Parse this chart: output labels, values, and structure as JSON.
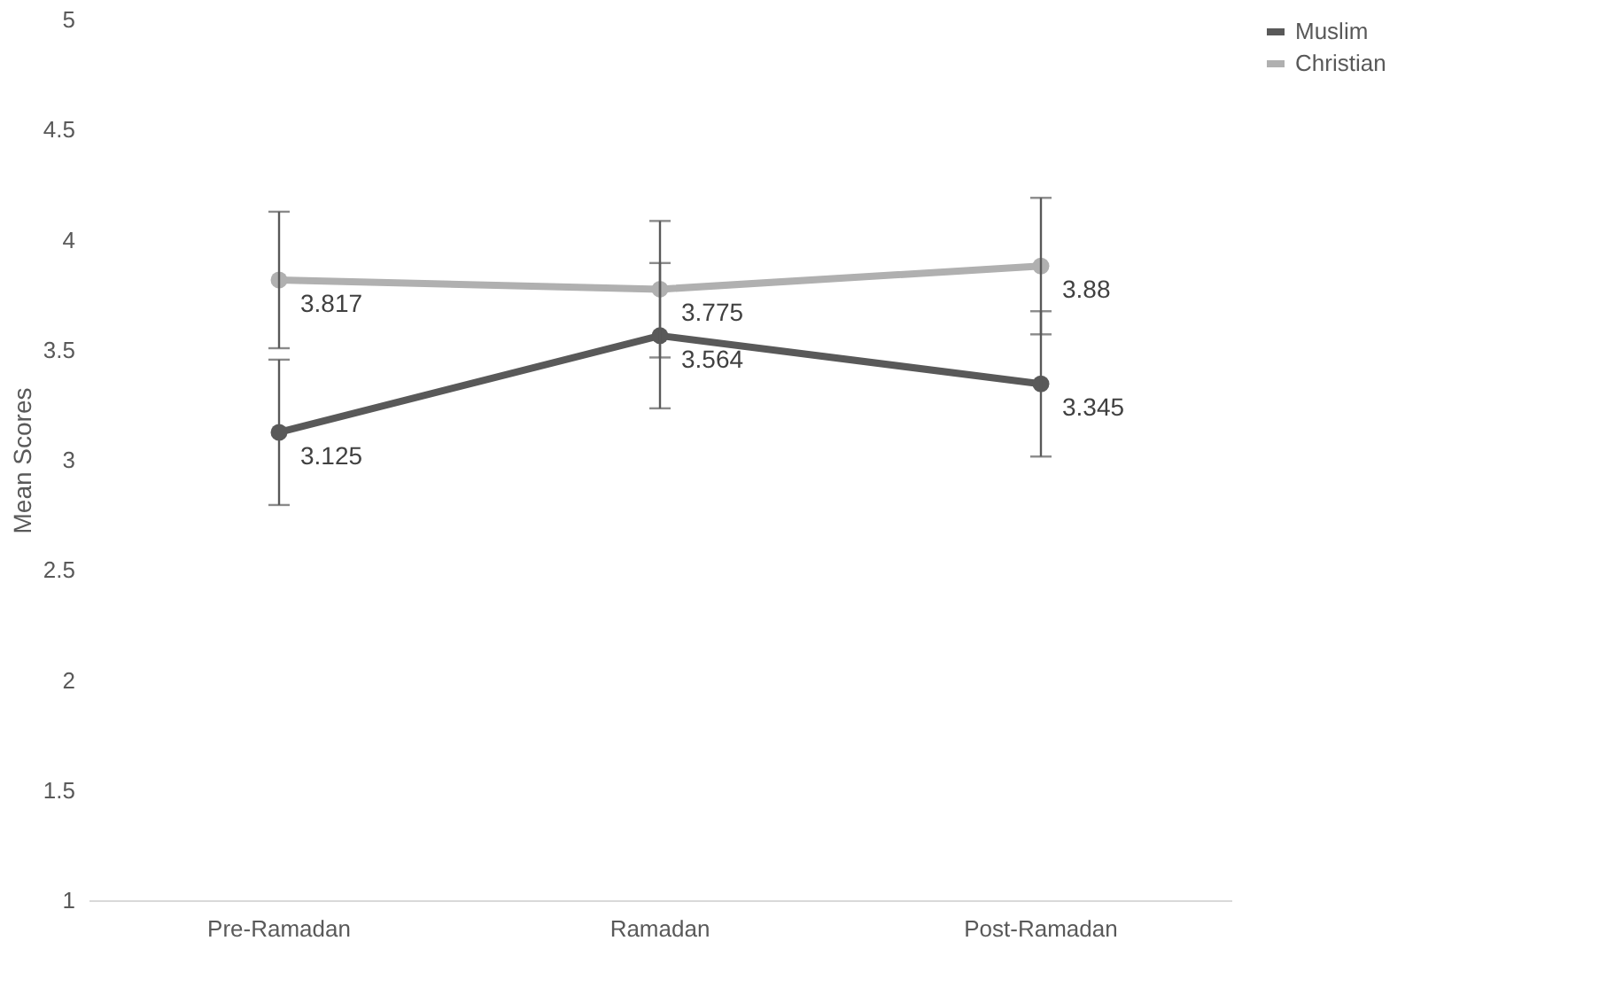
{
  "chart_data": {
    "type": "line",
    "ylabel": "Mean Scores",
    "categories": [
      "Pre-Ramadan",
      "Ramadan",
      "Post-Ramadan"
    ],
    "series": [
      {
        "name": "Muslim",
        "color": "#595959",
        "values": [
          3.125,
          3.564,
          3.345
        ],
        "errors": [
          0.33,
          0.33,
          0.33
        ]
      },
      {
        "name": "Christian",
        "color": "#b0b0b0",
        "values": [
          3.817,
          3.775,
          3.88
        ],
        "errors": [
          0.31,
          0.31,
          0.31
        ]
      }
    ],
    "ylim": [
      1,
      5
    ],
    "yticks": [
      1,
      1.5,
      2,
      2.5,
      3,
      3.5,
      4,
      4.5,
      5
    ],
    "data_labels": true,
    "grid": false,
    "legend": "right",
    "marker": "circle",
    "line_style": "solid"
  }
}
